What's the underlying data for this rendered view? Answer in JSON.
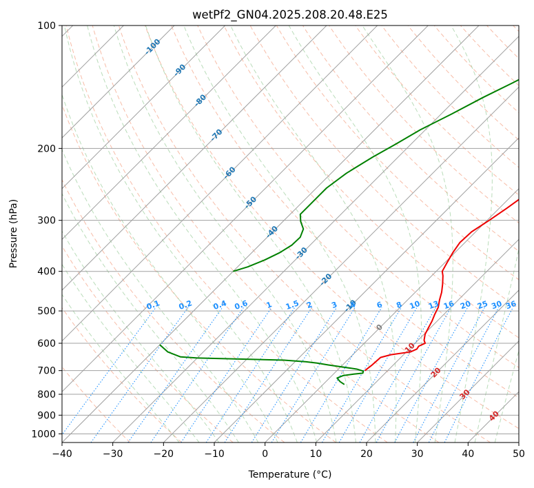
{
  "chart_data": {
    "type": "line",
    "title": "wetPf2_GN04.2025.208.20.48.E25",
    "xlabel": "Temperature (°C)",
    "ylabel": "Pressure (hPa)",
    "xlim": [
      -40,
      50
    ],
    "ylim": [
      1050,
      100
    ],
    "y_scale": "log",
    "x_ticks": [
      "−40",
      "−30",
      "−20",
      "−10",
      "0",
      "10",
      "20",
      "30",
      "40",
      "50"
    ],
    "y_ticks": [
      "100",
      "200",
      "300",
      "400",
      "500",
      "600",
      "700",
      "800",
      "900",
      "1000"
    ],
    "grid": true,
    "colors": {
      "temperature": "#ee0000",
      "dewpoint": "#008000",
      "isotherm": "#a0a0a0",
      "dry_adiabat": "#f4a58a",
      "moist_adiabat": "#7fbf7f",
      "mixing_ratio": "#1e90ff",
      "isotherm_label": "#1f77b4",
      "adiabat_label": "#d62728"
    },
    "series": [
      {
        "points": [
          [
            5.5,
            700
          ],
          [
            5.8,
            680
          ],
          [
            6.0,
            650
          ],
          [
            7.5,
            640
          ],
          [
            10.8,
            630
          ],
          [
            11.5,
            620
          ],
          [
            11.3,
            610
          ],
          [
            12.0,
            600
          ],
          [
            11.2,
            590
          ],
          [
            10.2,
            570
          ],
          [
            9.6,
            550
          ],
          [
            9.0,
            530
          ],
          [
            8.2,
            510
          ],
          [
            7.5,
            490
          ],
          [
            6.3,
            470
          ],
          [
            5.2,
            450
          ],
          [
            3.8,
            430
          ],
          [
            2.2,
            410
          ],
          [
            1.2,
            400
          ],
          [
            0.4,
            380
          ],
          [
            -0.4,
            360
          ],
          [
            -1.0,
            340
          ],
          [
            -0.8,
            320
          ],
          [
            0.4,
            300
          ],
          [
            1.5,
            280
          ],
          [
            2.5,
            260
          ],
          [
            3.4,
            240
          ],
          [
            4.6,
            220
          ],
          [
            6.8,
            200
          ],
          [
            9.0,
            190
          ],
          [
            11.8,
            180
          ],
          [
            14.0,
            170
          ],
          [
            15.0,
            160
          ],
          [
            15.4,
            150
          ],
          [
            16.2,
            145
          ],
          [
            18.0,
            140
          ],
          [
            21.0,
            135
          ],
          [
            24.5,
            130
          ],
          [
            27.0,
            125
          ],
          [
            28.5,
            120
          ],
          [
            30.5,
            115
          ],
          [
            31.5,
            110
          ],
          [
            32.8,
            105
          ],
          [
            34.0,
            100
          ]
        ]
      },
      {
        "points": [
          [
            4.2,
            757
          ],
          [
            2.8,
            745
          ],
          [
            1.5,
            730
          ],
          [
            2.2,
            720
          ],
          [
            4.0,
            714
          ],
          [
            5.6,
            710
          ],
          [
            5.3,
            702
          ],
          [
            3.6,
            694
          ],
          [
            -2.8,
            678
          ],
          [
            -5.4,
            671
          ],
          [
            -7.8,
            666
          ],
          [
            -12.5,
            660
          ],
          [
            -30.0,
            652
          ],
          [
            -33.5,
            648
          ],
          [
            -37.0,
            630
          ],
          [
            -40.0,
            605
          ]
        ]
      },
      {
        "points": [
          [
            -40.0,
            400
          ],
          [
            -38.0,
            390
          ],
          [
            -36.0,
            375
          ],
          [
            -34.5,
            360
          ],
          [
            -33.6,
            345
          ],
          [
            -33.5,
            330
          ],
          [
            -34.5,
            315
          ],
          [
            -36.5,
            302
          ],
          [
            -38.0,
            290
          ],
          [
            -38.0,
            280
          ],
          [
            -38.0,
            270
          ],
          [
            -38.0,
            260
          ],
          [
            -38.0,
            250
          ],
          [
            -37.0,
            230
          ],
          [
            -35.0,
            210
          ],
          [
            -33.0,
            195
          ],
          [
            -31.0,
            180
          ],
          [
            -28.0,
            165
          ],
          [
            -25.0,
            150
          ],
          [
            -22.0,
            138
          ],
          [
            -20.0,
            130
          ],
          [
            -18.0,
            122
          ],
          [
            -15.0,
            116
          ],
          [
            -11.0,
            114
          ],
          [
            -8.5,
            113
          ],
          [
            -7.6,
            111
          ],
          [
            -7.4,
            108
          ],
          [
            -8.5,
            104
          ],
          [
            -7.6,
            102
          ],
          [
            -6.6,
            100
          ]
        ]
      }
    ],
    "isotherm_labels": [
      {
        "text": "-100",
        "temp": -100,
        "p": 113
      },
      {
        "text": "-90",
        "temp": -90,
        "p": 129
      },
      {
        "text": "-80",
        "temp": -80,
        "p": 153
      },
      {
        "text": "-70",
        "temp": -70,
        "p": 186
      },
      {
        "text": "-60",
        "temp": -60,
        "p": 230
      },
      {
        "text": "-50",
        "temp": -50,
        "p": 272
      },
      {
        "text": "-40",
        "temp": -40,
        "p": 321
      },
      {
        "text": "-30",
        "temp": -30,
        "p": 362
      },
      {
        "text": "-20",
        "temp": -20,
        "p": 420
      },
      {
        "text": "-10",
        "temp": -10,
        "p": 487
      },
      {
        "text": "0",
        "temp": 0,
        "p": 550
      }
    ],
    "dry_adiabat_labels": [
      {
        "text": "10",
        "temp": 10,
        "p": 617
      },
      {
        "text": "20",
        "temp": 20,
        "p": 709
      },
      {
        "text": "30",
        "temp": 30,
        "p": 802
      },
      {
        "text": "40",
        "temp": 40,
        "p": 906
      }
    ],
    "mixing_ratio_labels": [
      "0.1",
      "0.2",
      "0.4",
      "0.6",
      "1",
      "1.5",
      "2",
      "3",
      "4",
      "6",
      "8",
      "10",
      "13",
      "16",
      "20",
      "25",
      "30",
      "36"
    ],
    "mixing_ratio_values": [
      0.1,
      0.2,
      0.4,
      0.6,
      1,
      1.5,
      2,
      3,
      4,
      6,
      8,
      10,
      13,
      16,
      20,
      25,
      30,
      36
    ],
    "mixing_ratio_label_pressure": 500
  }
}
